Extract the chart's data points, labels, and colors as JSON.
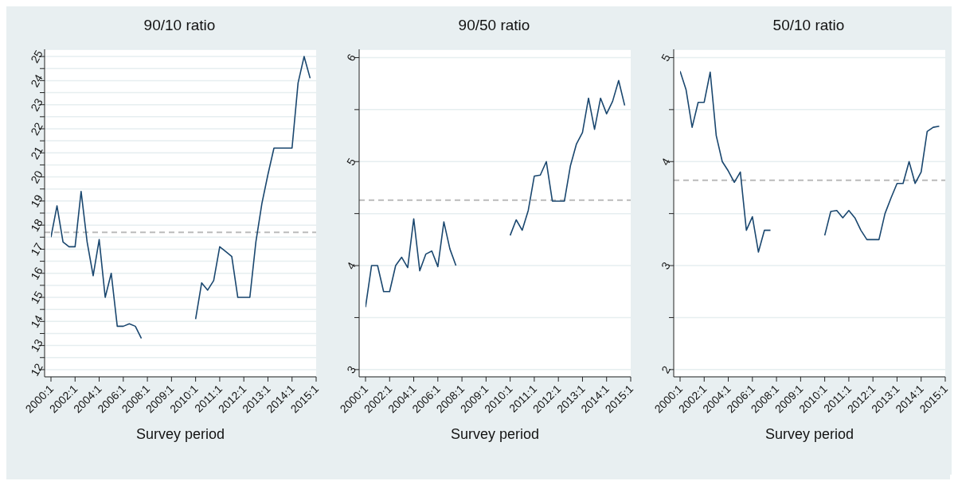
{
  "chart_data": [
    {
      "type": "line",
      "title": "90/10 ratio",
      "xlabel": "Survey period",
      "categories": [
        "2000:1",
        null,
        null,
        null,
        "2002:1",
        null,
        null,
        null,
        "2004:1",
        null,
        null,
        null,
        "2006:1",
        null,
        null,
        null,
        "2008:1",
        null,
        null,
        null,
        "2009:1",
        null,
        null,
        null,
        "2010:1",
        null,
        null,
        null,
        "2011:1",
        null,
        null,
        null,
        "2012:1",
        null,
        null,
        null,
        "2013:1",
        null,
        null,
        null,
        "2014:1",
        null,
        null,
        null,
        "2015:1"
      ],
      "series": [
        {
          "color": "#1a476f",
          "values": [
            17.5,
            18.8,
            17.3,
            17.1,
            17.1,
            19.4,
            17.3,
            15.9,
            17.4,
            15.0,
            16.0,
            13.8,
            13.8,
            13.9,
            13.8,
            13.3,
            null,
            null,
            null,
            null,
            null,
            null,
            null,
            null,
            14.1,
            15.6,
            15.3,
            15.7,
            17.1,
            16.9,
            16.7,
            15.0,
            15.0,
            15.0,
            17.3,
            18.9,
            20.1,
            21.2,
            21.2,
            21.2,
            21.2,
            23.9,
            25.0,
            24.1,
            null
          ]
        }
      ],
      "ylim": [
        11.7,
        25.3
      ],
      "yticks": [
        12,
        {
          "value": 12.5,
          "label": null
        },
        13,
        {
          "value": 13.5,
          "label": null
        },
        14,
        {
          "value": 14.5,
          "label": null
        },
        15,
        {
          "value": 15.5,
          "label": null
        },
        16,
        {
          "value": 16.5,
          "label": null
        },
        17,
        {
          "value": 17.5,
          "label": null
        },
        18,
        {
          "value": 18.5,
          "label": null
        },
        19,
        {
          "value": 19.5,
          "label": null
        },
        20,
        {
          "value": 20.5,
          "label": null
        },
        21,
        {
          "value": 21.5,
          "label": null
        },
        22,
        {
          "value": 22.5,
          "label": null
        },
        23,
        {
          "value": 23.5,
          "label": null
        },
        24,
        {
          "value": 24.5,
          "label": null
        },
        25
      ],
      "ref_lines": [
        {
          "axis": "y",
          "value": 17.7,
          "color": "#bbbbbb",
          "line_style": "dashed"
        }
      ],
      "grid": "y"
    },
    {
      "type": "line",
      "title": "90/50 ratio",
      "xlabel": "Survey period",
      "categories": [
        "2000:1",
        null,
        null,
        null,
        "2002:1",
        null,
        null,
        null,
        "2004:1",
        null,
        null,
        null,
        "2006:1",
        null,
        null,
        null,
        "2008:1",
        null,
        null,
        null,
        "2009:1",
        null,
        null,
        null,
        "2010:1",
        null,
        null,
        null,
        "2011:1",
        null,
        null,
        null,
        "2012:1",
        null,
        null,
        null,
        "2013:1",
        null,
        null,
        null,
        "2014:1",
        null,
        null,
        null,
        "2015:1"
      ],
      "series": [
        {
          "color": "#1a476f",
          "values": [
            3.6,
            4.0,
            4.0,
            3.75,
            3.75,
            4.0,
            4.08,
            3.98,
            4.45,
            3.95,
            4.11,
            4.14,
            3.99,
            4.42,
            4.16,
            4.0,
            null,
            null,
            null,
            null,
            null,
            null,
            null,
            null,
            4.29,
            4.44,
            4.34,
            4.53,
            4.86,
            4.87,
            5.0,
            4.62,
            4.62,
            4.62,
            4.96,
            5.17,
            5.28,
            5.61,
            5.31,
            5.61,
            5.46,
            5.58,
            5.78,
            5.54,
            null
          ]
        }
      ],
      "ylim": [
        2.93,
        6.08
      ],
      "yticks": [
        3,
        {
          "value": 3.5,
          "label": null
        },
        4,
        {
          "value": 4.5,
          "label": null
        },
        5,
        {
          "value": 5.5,
          "label": null
        },
        6
      ],
      "ref_lines": [
        {
          "axis": "y",
          "value": 4.63,
          "color": "#bbbbbb",
          "line_style": "dashed"
        }
      ],
      "grid": "y"
    },
    {
      "type": "line",
      "title": "50/10 ratio",
      "xlabel": "Survey period",
      "categories": [
        "2000:1",
        null,
        null,
        null,
        "2002:1",
        null,
        null,
        null,
        "2004:1",
        null,
        null,
        null,
        "2006:1",
        null,
        null,
        null,
        "2008:1",
        null,
        null,
        null,
        "2009:1",
        null,
        null,
        null,
        "2010:1",
        null,
        null,
        null,
        "2011:1",
        null,
        null,
        null,
        "2012:1",
        null,
        null,
        null,
        "2013:1",
        null,
        null,
        null,
        "2014:1",
        null,
        null,
        null,
        "2015:1"
      ],
      "series": [
        {
          "color": "#1a476f",
          "values": [
            4.87,
            4.69,
            4.33,
            4.57,
            4.57,
            4.86,
            4.25,
            4.0,
            3.91,
            3.8,
            3.9,
            3.34,
            3.47,
            3.13,
            3.34,
            3.34,
            null,
            null,
            null,
            null,
            null,
            null,
            null,
            null,
            3.29,
            3.52,
            3.53,
            3.46,
            3.53,
            3.46,
            3.34,
            3.25,
            3.25,
            3.25,
            3.5,
            3.65,
            3.79,
            3.79,
            4.0,
            3.79,
            3.9,
            4.29,
            4.33,
            4.34,
            null
          ]
        }
      ],
      "ylim": [
        1.93,
        5.08
      ],
      "yticks": [
        2,
        {
          "value": 2.5,
          "label": null
        },
        3,
        {
          "value": 3.5,
          "label": null
        },
        4,
        {
          "value": 4.5,
          "label": null
        },
        5
      ],
      "ref_lines": [
        {
          "axis": "y",
          "value": 3.82,
          "color": "#bbbbbb",
          "line_style": "dashed"
        }
      ],
      "grid": "y"
    }
  ]
}
